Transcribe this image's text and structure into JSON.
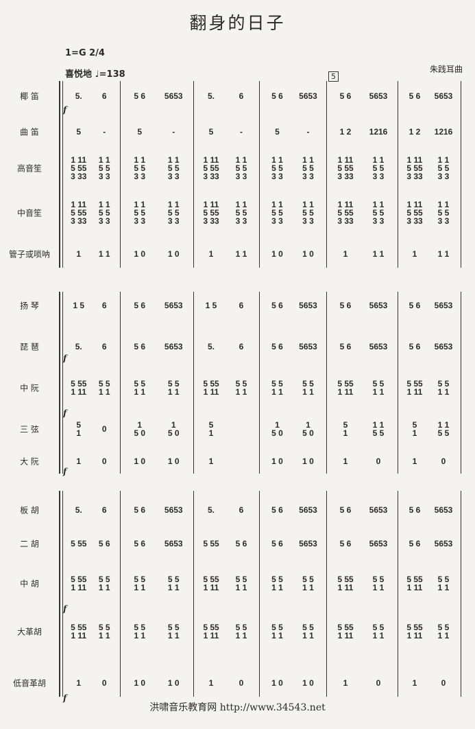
{
  "title": "翻身的日子",
  "key": "1=G  2/4",
  "tempo": "喜悦地 ♩=138",
  "composer": "朱践耳曲",
  "rehearsal_mark": "5",
  "footer": "洪啸音乐教育网 http://www.34543.net",
  "dynamic": "f",
  "rows": [
    {
      "label": "椰  笛",
      "measures": [
        [
          "5.",
          "6"
        ],
        [
          "5 6",
          "5653"
        ],
        [
          "5.",
          "6"
        ],
        [
          "5 6",
          "5653"
        ],
        [
          "5 6",
          "5653"
        ],
        [
          "5 6",
          "5653"
        ]
      ]
    },
    {
      "label": "曲  笛",
      "measures": [
        [
          "5",
          "-"
        ],
        [
          "5",
          "-"
        ],
        [
          "5",
          "-"
        ],
        [
          "5",
          "-"
        ],
        [
          "1 2",
          "1216"
        ],
        [
          "1 2",
          "1216"
        ]
      ]
    },
    {
      "label": "高音笙",
      "measures": [
        [
          "1 11\n5 55\n3 33",
          "1 1\n5 5\n3 3"
        ],
        [
          "1 1\n5 5\n3 3",
          "1 1\n5 5\n3 3"
        ],
        [
          "1 11\n5 55\n3 33",
          "1 1\n5 5\n3 3"
        ],
        [
          "1 1\n5 5\n3 3",
          "1 1\n5 5\n3 3"
        ],
        [
          "1 11\n5 55\n3 33",
          "1 1\n5 5\n3 3"
        ],
        [
          "1 11\n5 55\n3 33",
          "1 1\n5 5\n3 3"
        ]
      ]
    },
    {
      "label": "中音笙",
      "measures": [
        [
          "1 11\n5 55\n3 33",
          "1 1\n5 5\n3 3"
        ],
        [
          "1 1\n5 5\n3 3",
          "1 1\n5 5\n3 3"
        ],
        [
          "1 11\n5 55\n3 33",
          "1 1\n5 5\n3 3"
        ],
        [
          "1 1\n5 5\n3 3",
          "1 1\n5 5\n3 3"
        ],
        [
          "1 11\n5 55\n3 33",
          "1 1\n5 5\n3 3"
        ],
        [
          "1 11\n5 55\n3 33",
          "1 1\n5 5\n3 3"
        ]
      ]
    },
    {
      "label": "管子或唢呐",
      "measures": [
        [
          "1",
          "1 1"
        ],
        [
          "1 0",
          "1 0"
        ],
        [
          "1",
          "1 1"
        ],
        [
          "1 0",
          "1 0"
        ],
        [
          "1",
          "1 1"
        ],
        [
          "1",
          "1 1"
        ]
      ]
    },
    {
      "label": "扬  琴",
      "measures": [
        [
          "1 5",
          "6"
        ],
        [
          "5 6",
          "5653"
        ],
        [
          "1 5",
          "6"
        ],
        [
          "5 6",
          "5653"
        ],
        [
          "5 6",
          "5653"
        ],
        [
          "5 6",
          "5653"
        ]
      ]
    },
    {
      "label": "琵  琶",
      "measures": [
        [
          "5.",
          "6"
        ],
        [
          "5 6",
          "5653"
        ],
        [
          "5.",
          "6"
        ],
        [
          "5 6",
          "5653"
        ],
        [
          "5 6",
          "5653"
        ],
        [
          "5 6",
          "5653"
        ]
      ]
    },
    {
      "label": "中  阮",
      "measures": [
        [
          "5 55\n1 11",
          "5 5\n1 1"
        ],
        [
          "5 5\n1 1",
          "5 5\n1 1"
        ],
        [
          "5 55\n1 11",
          "5 5\n1 1"
        ],
        [
          "5 5\n1 1",
          "5 5\n1 1"
        ],
        [
          "5 55\n1 11",
          "5 5\n1 1"
        ],
        [
          "5 55\n1 11",
          "5 5\n1 1"
        ]
      ]
    },
    {
      "label": "三  弦",
      "measures": [
        [
          "5\n1",
          "0"
        ],
        [
          "1\n5 0",
          "1\n5 0"
        ],
        [
          "5\n1",
          ""
        ],
        [
          "1\n5 0",
          "1\n5 0"
        ],
        [
          "5\n1",
          "1 1\n5 5"
        ],
        [
          "5\n1",
          "1 1\n5 5"
        ]
      ]
    },
    {
      "label": "大  阮",
      "measures": [
        [
          "1",
          "0"
        ],
        [
          "1 0",
          "1 0"
        ],
        [
          "1",
          ""
        ],
        [
          "1 0",
          "1 0"
        ],
        [
          "1",
          "0"
        ],
        [
          "1",
          "0"
        ]
      ]
    },
    {
      "label": "板  胡",
      "measures": [
        [
          "5.",
          "6"
        ],
        [
          "5 6",
          "5653"
        ],
        [
          "5.",
          "6"
        ],
        [
          "5 6",
          "5653"
        ],
        [
          "5 6",
          "5653"
        ],
        [
          "5 6",
          "5653"
        ]
      ]
    },
    {
      "label": "二  胡",
      "measures": [
        [
          "5 55",
          "5 6"
        ],
        [
          "5 6",
          "5653"
        ],
        [
          "5 55",
          "5 6"
        ],
        [
          "5 6",
          "5653"
        ],
        [
          "5 6",
          "5653"
        ],
        [
          "5 6",
          "5653"
        ]
      ]
    },
    {
      "label": "中  胡",
      "measures": [
        [
          "5 55\n1 11",
          "5 5\n1 1"
        ],
        [
          "5 5\n1 1",
          "5 5\n1 1"
        ],
        [
          "5 55\n1 11",
          "5 5\n1 1"
        ],
        [
          "5 5\n1 1",
          "5 5\n1 1"
        ],
        [
          "5 55\n1 11",
          "5 5\n1 1"
        ],
        [
          "5 55\n1 11",
          "5 5\n1 1"
        ]
      ]
    },
    {
      "label": "大革胡",
      "measures": [
        [
          "5 55\n1 11",
          "5 5\n1 1"
        ],
        [
          "5 5\n1 1",
          "5 5\n1 1"
        ],
        [
          "5 55\n1 11",
          "5 5\n1 1"
        ],
        [
          "5 5\n1 1",
          "5 5\n1 1"
        ],
        [
          "5 55\n1 11",
          "5 5\n1 1"
        ],
        [
          "5 55\n1 11",
          "5 5\n1 1"
        ]
      ]
    },
    {
      "label": "低音革胡",
      "measures": [
        [
          "1",
          "0"
        ],
        [
          "1 0",
          "1 0"
        ],
        [
          "1",
          "0"
        ],
        [
          "1 0",
          "1 0"
        ],
        [
          "1",
          "0"
        ],
        [
          "1",
          "0"
        ]
      ]
    }
  ]
}
